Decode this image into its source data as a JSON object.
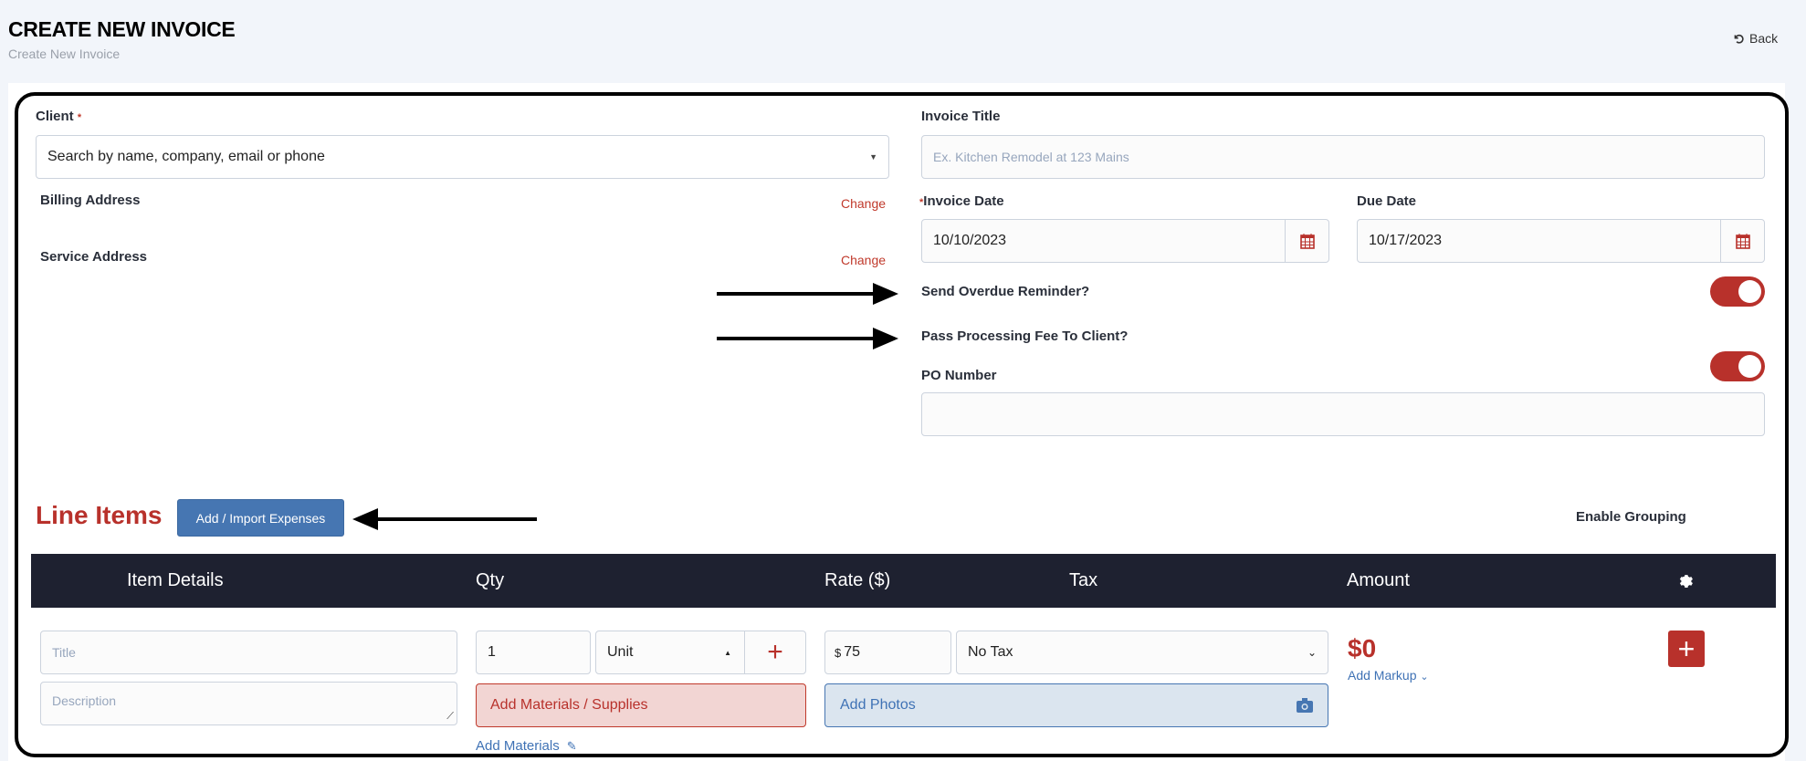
{
  "header": {
    "title": "CREATE NEW INVOICE",
    "subtitle": "Create New Invoice",
    "back_label": "Back"
  },
  "client": {
    "label": "Client",
    "required_mark": "*",
    "placeholder": "Search by name, company, email or phone"
  },
  "billing": {
    "label": "Billing Address",
    "change": "Change"
  },
  "service": {
    "label": "Service Address",
    "change": "Change"
  },
  "invoice_title": {
    "label": "Invoice Title",
    "placeholder": "Ex. Kitchen Remodel at 123 Mains"
  },
  "invoice_date": {
    "label": "Invoice Date",
    "required_mark": "*",
    "value": "10/10/2023"
  },
  "due_date": {
    "label": "Due Date",
    "value": "10/17/2023"
  },
  "overdue_reminder": {
    "label": "Send Overdue Reminder?",
    "on": true
  },
  "processing_fee": {
    "label": "Pass Processing Fee To Client?",
    "on": true
  },
  "po_number": {
    "label": "PO Number",
    "value": ""
  },
  "line_items": {
    "title": "Line Items",
    "import_button": "Add / Import Expenses",
    "grouping_label": "Enable Grouping",
    "grouping_on": false,
    "columns": [
      "Item Details",
      "Qty",
      "Rate ($)",
      "Tax",
      "Amount"
    ],
    "row": {
      "title_placeholder": "Title",
      "description_placeholder": "Description",
      "qty": "1",
      "unit": "Unit",
      "materials_button": "Add Materials / Supplies",
      "materials_link": "Add Materials",
      "rate_prefix": "$",
      "rate": "75",
      "tax": "No Tax",
      "photos_button": "Add Photos",
      "amount": "$0",
      "markup_link": "Add Markup"
    }
  },
  "colors": {
    "accent": "#b8312b",
    "primary": "#4676b2",
    "header_bg": "#1e2130"
  }
}
